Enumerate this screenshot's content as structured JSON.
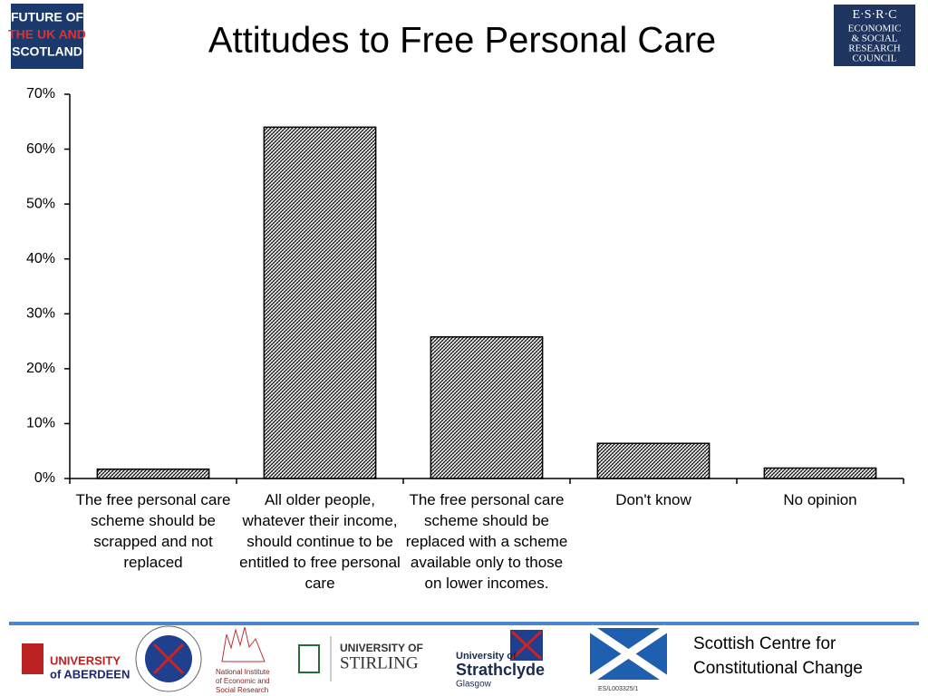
{
  "chart_data": {
    "type": "bar",
    "title": "Attitudes to Free Personal Care",
    "categories": [
      "The free personal care scheme should be scrapped and not replaced",
      "All older people, whatever their income, should continue to be entitled to free personal care",
      "The free personal care scheme should be replaced with a scheme available only to those on lower incomes.",
      "Don't know",
      "No opinion"
    ],
    "values": [
      1.7,
      64,
      25.8,
      6.4,
      1.9
    ],
    "color": "#000000",
    "ylim": [
      0,
      70
    ],
    "yticks": [
      {
        "value": 0,
        "label": "0%"
      },
      {
        "value": 10,
        "label": "10%"
      },
      {
        "value": 20,
        "label": "20%"
      },
      {
        "value": 30,
        "label": "30%"
      },
      {
        "value": 40,
        "label": "40%"
      },
      {
        "value": 50,
        "label": "50%"
      },
      {
        "value": 60,
        "label": "60%"
      },
      {
        "value": 70,
        "label": "70%"
      }
    ],
    "grid": false
  },
  "logos": {
    "future": [
      "FUTURE OF",
      "THE UK AND",
      "SCOTLAND"
    ],
    "esrc": [
      "E·S·R·C",
      "ECONOMIC",
      "& SOCIAL",
      "RESEARCH",
      "COUNCIL"
    ],
    "aberdeen": [
      "UNIVERSITY",
      "of ABERDEEN"
    ],
    "niesr": [
      "National Institute",
      "of Economic and",
      "Social Research"
    ],
    "stirling": [
      "UNIVERSITY OF",
      "STIRLING"
    ],
    "strathclyde": [
      "University of",
      "Strathclyde",
      "Glasgow"
    ],
    "centre": [
      "Scottish Centre for",
      "Constitutional Change"
    ],
    "grant": "ES/L003325/1"
  }
}
